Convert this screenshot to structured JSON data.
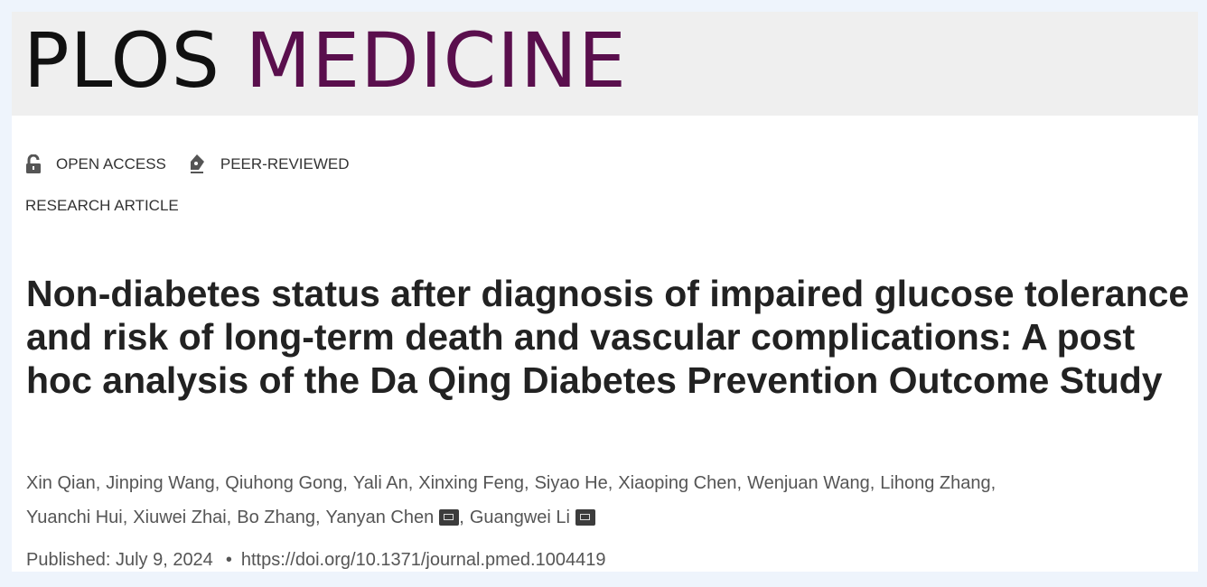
{
  "journal": {
    "name_part1": "PLOS",
    "name_part2": "MEDICINE",
    "accent_color": "#5a0f4d"
  },
  "badges": [
    {
      "icon": "open-lock-icon",
      "label": "OPEN ACCESS"
    },
    {
      "icon": "pen-nib-icon",
      "label": "PEER-REVIEWED"
    }
  ],
  "article_type": "RESEARCH ARTICLE",
  "title": "Non-diabetes status after diagnosis of impaired glucose tolerance and risk of long-term death and vascular complications: A post hoc analysis of the Da Qing Diabetes Prevention Outcome Study",
  "authors": [
    {
      "name": "Xin Qian,"
    },
    {
      "name": "Jinping Wang,"
    },
    {
      "name": "Qiuhong Gong,"
    },
    {
      "name": "Yali An,"
    },
    {
      "name": "Xinxing Feng,"
    },
    {
      "name": "Siyao He,"
    },
    {
      "name": "Xiaoping Chen,"
    },
    {
      "name": "Wenjuan Wang,"
    },
    {
      "name": "Lihong Zhang,"
    },
    {
      "name": "Yuanchi Hui,"
    },
    {
      "name": "Xiuwei Zhai,"
    },
    {
      "name": "Bo Zhang,"
    },
    {
      "name": "Yanyan Chen",
      "corresponding": true,
      "suffix": ","
    },
    {
      "name": "Guangwei Li",
      "corresponding": true
    }
  ],
  "published": {
    "label": "Published: July 9, 2024",
    "separator": "•",
    "doi": "https://doi.org/10.1371/journal.pmed.1004419"
  }
}
